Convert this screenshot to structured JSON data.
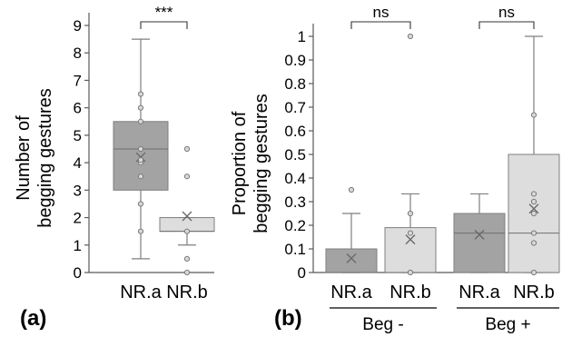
{
  "colors": {
    "dark_box": "#a3a3a3",
    "light_box": "#dddddd",
    "whisker": "#7f7f7f",
    "axis": "#595959",
    "point": "#7a7a7a"
  },
  "chart_data": [
    {
      "type": "box",
      "panel_label": "(a)",
      "ylabel_lines": [
        "Number of",
        "begging gestures"
      ],
      "ylim": [
        0,
        9
      ],
      "yticks": [
        "0",
        "1",
        "2",
        "3",
        "4",
        "5",
        "6",
        "7",
        "8",
        "9"
      ],
      "categories": [
        "NR.a",
        "NR.b"
      ],
      "boxes": [
        {
          "category": "NR.a",
          "color": "dark",
          "min": 0.5,
          "q1": 3.0,
          "median": 4.5,
          "q3": 5.5,
          "max": 8.5,
          "mean": 4.2,
          "points": [
            1.5,
            2.5,
            3.5,
            4.0,
            4.1,
            4.5,
            5.5,
            6.0,
            6.5
          ]
        },
        {
          "category": "NR.b",
          "color": "light",
          "min": 1.0,
          "q1": 1.5,
          "median": 1.5,
          "q3": 2.0,
          "max": 2.0,
          "mean": 2.05,
          "points": [
            0.0,
            0.5,
            1.5,
            3.5,
            4.5
          ]
        }
      ],
      "comparisons": [
        {
          "pair": [
            "NR.a",
            "NR.b"
          ],
          "label": "***"
        }
      ]
    },
    {
      "type": "box",
      "panel_label": "(b)",
      "ylabel_lines": [
        "Proportion of",
        "begging gestures"
      ],
      "ylim": [
        0,
        1
      ],
      "yticks": [
        "0",
        "0.1",
        "0.2",
        "0.3",
        "0.4",
        "0.5",
        "0.6",
        "0.7",
        "0.8",
        "0.9",
        "1"
      ],
      "categories": [
        "NR.a",
        "NR.b",
        "NR.a",
        "NR.b"
      ],
      "groups": [
        {
          "label": "Beg -",
          "categories": [
            0,
            1
          ]
        },
        {
          "label": "Beg +",
          "categories": [
            2,
            3
          ]
        }
      ],
      "boxes": [
        {
          "category": "NR.a",
          "group": "Beg -",
          "color": "dark",
          "min": 0.0,
          "q1": 0.0,
          "median": 0.0,
          "q3": 0.1,
          "max": 0.25,
          "mean": 0.06,
          "points": [
            0.35
          ]
        },
        {
          "category": "NR.b",
          "group": "Beg -",
          "color": "light",
          "min": 0.0,
          "q1": 0.0,
          "median": 0.0,
          "q3": 0.19,
          "max": 0.333,
          "mean": 0.14,
          "points": [
            0.0,
            0.167,
            0.25,
            1.0
          ]
        },
        {
          "category": "NR.a",
          "group": "Beg +",
          "color": "dark",
          "min": 0.0,
          "q1": 0.0,
          "median": 0.167,
          "q3": 0.25,
          "max": 0.333,
          "mean": 0.16,
          "points": []
        },
        {
          "category": "NR.b",
          "group": "Beg +",
          "color": "light",
          "min": 0.0,
          "q1": 0.0,
          "median": 0.167,
          "q3": 0.5,
          "max": 1.0,
          "mean": 0.27,
          "points": [
            0.0,
            0.125,
            0.167,
            0.25,
            0.3,
            0.333,
            0.667
          ]
        }
      ],
      "comparisons": [
        {
          "pair": [
            "NR.a",
            "NR.b"
          ],
          "group": "Beg -",
          "label": "ns"
        },
        {
          "pair": [
            "NR.a",
            "NR.b"
          ],
          "group": "Beg +",
          "label": "ns"
        }
      ]
    }
  ]
}
